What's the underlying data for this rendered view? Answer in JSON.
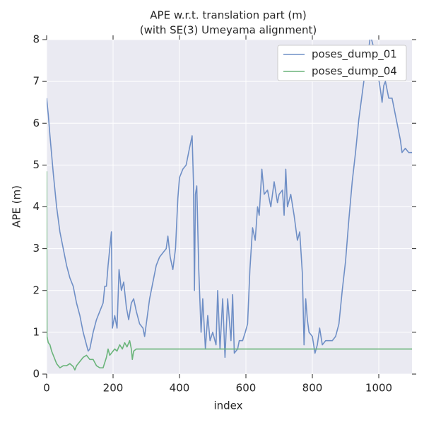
{
  "chart_data": {
    "type": "line",
    "title": "APE w.r.t. translation part (m)",
    "subtitle": "(with SE(3) Umeyama alignment)",
    "x_label": "index",
    "y_label": "APE (m)",
    "xlim": [
      0,
      1100
    ],
    "ylim": [
      0,
      8
    ],
    "xticks": [
      0,
      200,
      400,
      600,
      800,
      1000
    ],
    "yticks": [
      0,
      1,
      2,
      3,
      4,
      5,
      6,
      7,
      8
    ],
    "grid": true,
    "legend": "upper right",
    "series": [
      {
        "name": "poses_dump_01",
        "color": "#6f8fc6",
        "x": [
          0,
          5,
          10,
          20,
          30,
          40,
          50,
          60,
          70,
          80,
          90,
          100,
          110,
          120,
          125,
          130,
          140,
          150,
          160,
          170,
          175,
          180,
          185,
          190,
          195,
          198,
          205,
          212,
          218,
          225,
          232,
          240,
          247,
          255,
          262,
          270,
          280,
          290,
          295,
          300,
          310,
          320,
          330,
          340,
          350,
          360,
          365,
          372,
          380,
          388,
          395,
          400,
          410,
          420,
          430,
          438,
          442,
          445,
          448,
          452,
          458,
          465,
          470,
          478,
          485,
          492,
          500,
          510,
          515,
          522,
          530,
          537,
          545,
          555,
          560,
          565,
          575,
          580,
          590,
          598,
          605,
          612,
          620,
          628,
          635,
          640,
          648,
          655,
          665,
          675,
          685,
          695,
          700,
          710,
          715,
          720,
          725,
          735,
          745,
          755,
          762,
          770,
          775,
          780,
          785,
          790,
          800,
          808,
          815,
          822,
          830,
          840,
          850,
          860,
          870,
          880,
          890,
          900,
          910,
          920,
          930,
          940,
          950,
          960,
          965,
          975,
          985,
          995,
          1005,
          1010,
          1015,
          1020,
          1030,
          1040,
          1050,
          1060,
          1065,
          1070,
          1080,
          1090,
          1100
        ],
        "values": [
          6.6,
          6.2,
          5.7,
          4.8,
          4.0,
          3.4,
          3.0,
          2.6,
          2.3,
          2.1,
          1.7,
          1.4,
          1.0,
          0.7,
          0.55,
          0.6,
          1.0,
          1.3,
          1.5,
          1.7,
          2.1,
          2.1,
          2.6,
          3.0,
          3.4,
          1.1,
          1.4,
          1.1,
          2.5,
          2.0,
          2.2,
          1.6,
          1.3,
          1.7,
          1.8,
          1.5,
          1.2,
          1.1,
          0.9,
          1.2,
          1.8,
          2.2,
          2.6,
          2.8,
          2.9,
          3.0,
          3.3,
          2.8,
          2.5,
          3.0,
          4.2,
          4.7,
          4.9,
          5.0,
          5.4,
          5.7,
          4.6,
          2.0,
          4.3,
          4.5,
          2.5,
          1.0,
          1.8,
          0.6,
          1.4,
          0.8,
          1.0,
          0.7,
          2.0,
          0.6,
          1.8,
          0.4,
          1.8,
          0.8,
          1.9,
          0.5,
          0.6,
          0.8,
          0.8,
          1.0,
          1.2,
          2.5,
          3.5,
          3.2,
          4.0,
          3.8,
          4.9,
          4.3,
          4.4,
          4.0,
          4.6,
          4.1,
          4.3,
          4.4,
          3.8,
          4.9,
          4.0,
          4.3,
          3.8,
          3.2,
          3.4,
          2.4,
          0.7,
          1.8,
          1.3,
          1.0,
          0.9,
          0.5,
          0.7,
          1.1,
          0.7,
          0.8,
          0.8,
          0.8,
          0.9,
          1.2,
          2.0,
          2.7,
          3.7,
          4.6,
          5.3,
          6.1,
          6.7,
          7.3,
          7.5,
          8.1,
          7.8,
          7.3,
          6.8,
          6.5,
          6.9,
          7.0,
          6.6,
          6.6,
          6.2,
          5.8,
          5.6,
          5.3,
          5.4,
          5.3,
          5.3
        ]
      },
      {
        "name": "poses_dump_04",
        "color": "#6ab47a",
        "x": [
          0,
          1,
          5,
          10,
          15,
          20,
          30,
          40,
          50,
          60,
          70,
          80,
          85,
          90,
          100,
          110,
          120,
          130,
          140,
          150,
          160,
          170,
          180,
          185,
          190,
          195,
          205,
          212,
          220,
          228,
          235,
          242,
          250,
          255,
          258,
          262,
          270,
          1100
        ],
        "values": [
          4.85,
          0.9,
          0.75,
          0.7,
          0.55,
          0.45,
          0.25,
          0.15,
          0.2,
          0.2,
          0.25,
          0.18,
          0.1,
          0.2,
          0.3,
          0.4,
          0.45,
          0.35,
          0.35,
          0.2,
          0.15,
          0.15,
          0.4,
          0.6,
          0.45,
          0.5,
          0.6,
          0.55,
          0.7,
          0.6,
          0.75,
          0.65,
          0.8,
          0.6,
          0.35,
          0.55,
          0.6,
          0.6
        ]
      }
    ]
  }
}
